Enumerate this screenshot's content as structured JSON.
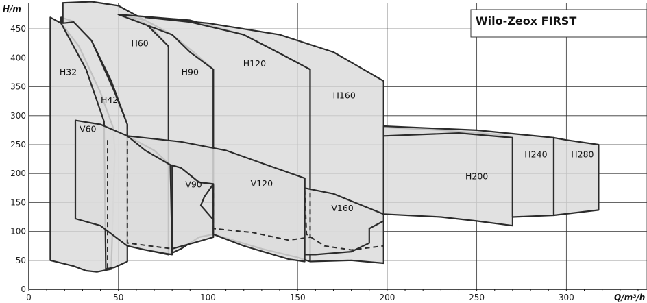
{
  "chart_data": {
    "type": "area",
    "title": "Wilo-Zeox FIRST",
    "xlabel": "Q/m³/h",
    "ylabel": "H/m",
    "xlim": [
      0,
      345
    ],
    "ylim": [
      0,
      500
    ],
    "x_ticks": [
      0,
      50,
      100,
      150,
      200,
      250,
      300
    ],
    "y_ticks": [
      0,
      50,
      100,
      150,
      200,
      250,
      300,
      350,
      400,
      450
    ],
    "grid": true,
    "series": [
      {
        "name": "H32",
        "label_at": [
          22,
          370
        ],
        "outline": [
          [
            12,
            470
          ],
          [
            18,
            460
          ],
          [
            28,
            420
          ],
          [
            40,
            340
          ],
          [
            47,
            280
          ],
          [
            48,
            240
          ],
          [
            46,
            35
          ],
          [
            38,
            30
          ],
          [
            32,
            32
          ],
          [
            25,
            40
          ],
          [
            12,
            50
          ]
        ]
      },
      {
        "name": "H42",
        "label_at": [
          45,
          322
        ],
        "outline": [
          [
            18,
            470
          ],
          [
            25,
            463
          ],
          [
            35,
            430
          ],
          [
            48,
            340
          ],
          [
            55,
            285
          ],
          [
            55,
            48
          ],
          [
            48,
            38
          ],
          [
            43,
            35
          ],
          [
            42,
            290
          ],
          [
            32,
            380
          ],
          [
            18,
            460
          ]
        ]
      },
      {
        "name": "H60",
        "label_at": [
          62,
          420
        ],
        "outline": [
          [
            19,
            495
          ],
          [
            35,
            497
          ],
          [
            50,
            490
          ],
          [
            65,
            465
          ],
          [
            78,
            420
          ],
          [
            78,
            60
          ],
          [
            55,
            75
          ],
          [
            55,
            285
          ],
          [
            46,
            360
          ],
          [
            35,
            430
          ],
          [
            25,
            462
          ],
          [
            19,
            460
          ]
        ]
      },
      {
        "name": "H90",
        "label_at": [
          90,
          370
        ],
        "outline": [
          [
            50,
            475
          ],
          [
            65,
            465
          ],
          [
            80,
            440
          ],
          [
            92,
            410
          ],
          [
            103,
            380
          ],
          [
            103,
            95
          ],
          [
            95,
            90
          ],
          [
            85,
            70
          ],
          [
            78,
            60
          ],
          [
            78,
            420
          ],
          [
            65,
            460
          ]
        ]
      },
      {
        "name": "H120",
        "label_at": [
          126,
          385
        ],
        "outline": [
          [
            50,
            475
          ],
          [
            90,
            465
          ],
          [
            120,
            440
          ],
          [
            140,
            408
          ],
          [
            157,
            380
          ],
          [
            157,
            48
          ],
          [
            150,
            55
          ],
          [
            130,
            70
          ],
          [
            103,
            95
          ],
          [
            103,
            380
          ],
          [
            90,
            410
          ],
          [
            80,
            440
          ]
        ]
      },
      {
        "name": "H160",
        "label_at": [
          176,
          330
        ],
        "outline": [
          [
            65,
            470
          ],
          [
            100,
            460
          ],
          [
            140,
            440
          ],
          [
            170,
            410
          ],
          [
            198,
            360
          ],
          [
            198,
            45
          ],
          [
            180,
            50
          ],
          [
            157,
            48
          ],
          [
            157,
            380
          ],
          [
            140,
            408
          ],
          [
            120,
            440
          ],
          [
            90,
            462
          ]
        ]
      },
      {
        "name": "H200",
        "label_at": [
          250,
          190
        ],
        "outline": [
          [
            198,
            280
          ],
          [
            230,
            275
          ],
          [
            260,
            268
          ],
          [
            270,
            262
          ],
          [
            270,
            110
          ],
          [
            250,
            118
          ],
          [
            230,
            125
          ],
          [
            198,
            130
          ]
        ]
      },
      {
        "name": "H240",
        "label_at": [
          283,
          228
        ],
        "outline": [
          [
            198,
            282
          ],
          [
            250,
            275
          ],
          [
            293,
            262
          ],
          [
            293,
            128
          ],
          [
            270,
            125
          ],
          [
            270,
            262
          ],
          [
            240,
            270
          ],
          [
            198,
            265
          ]
        ]
      },
      {
        "name": "H280",
        "label_at": [
          309,
          228
        ],
        "outline": [
          [
            293,
            262
          ],
          [
            300,
            258
          ],
          [
            318,
            250
          ],
          [
            318,
            137
          ],
          [
            293,
            128
          ]
        ]
      },
      {
        "name": "V60",
        "label_at": [
          33,
          272
        ],
        "outline": [
          [
            26,
            292
          ],
          [
            40,
            285
          ],
          [
            55,
            265
          ],
          [
            70,
            240
          ],
          [
            79,
            215
          ],
          [
            80,
            60
          ],
          [
            65,
            68
          ],
          [
            55,
            75
          ],
          [
            40,
            110
          ],
          [
            26,
            122
          ]
        ]
      },
      {
        "name": "V90",
        "label_at": [
          92,
          176
        ],
        "outline": [
          [
            85,
            210
          ],
          [
            95,
            185
          ],
          [
            103,
            182
          ],
          [
            98,
            160
          ],
          [
            96,
            145
          ],
          [
            103,
            120
          ],
          [
            103,
            90
          ],
          [
            94,
            82
          ],
          [
            80,
            70
          ],
          [
            80,
            215
          ]
        ]
      },
      {
        "name": "V120",
        "label_at": [
          130,
          178
        ],
        "outline": [
          [
            55,
            265
          ],
          [
            85,
            255
          ],
          [
            110,
            240
          ],
          [
            130,
            218
          ],
          [
            154,
            192
          ],
          [
            154,
            48
          ],
          [
            145,
            52
          ],
          [
            120,
            75
          ],
          [
            103,
            95
          ],
          [
            103,
            182
          ],
          [
            95,
            185
          ],
          [
            85,
            210
          ],
          [
            79,
            215
          ],
          [
            65,
            240
          ]
        ]
      },
      {
        "name": "V160",
        "label_at": [
          175,
          135
        ],
        "outline": [
          [
            154,
            175
          ],
          [
            170,
            165
          ],
          [
            198,
            130
          ],
          [
            198,
            118
          ],
          [
            190,
            105
          ],
          [
            190,
            80
          ],
          [
            180,
            65
          ],
          [
            160,
            60
          ],
          [
            154,
            60
          ],
          [
            154,
            192
          ]
        ]
      }
    ],
    "dashed_boundaries": [
      {
        "name": "H32 min",
        "points": [
          [
            44,
            258
          ],
          [
            44,
            35
          ]
        ]
      },
      {
        "name": "H60 min",
        "points": [
          [
            55,
            285
          ],
          [
            55,
            80
          ],
          [
            80,
            70
          ]
        ]
      },
      {
        "name": "H90 min",
        "points": [
          [
            103,
            180
          ],
          [
            103,
            105
          ],
          [
            125,
            98
          ],
          [
            145,
            85
          ],
          [
            157,
            90
          ],
          [
            157,
            380
          ]
        ]
      },
      {
        "name": "V160 min",
        "points": [
          [
            154,
            172
          ],
          [
            155,
            95
          ],
          [
            165,
            75
          ],
          [
            180,
            68
          ],
          [
            198,
            75
          ]
        ]
      }
    ]
  }
}
